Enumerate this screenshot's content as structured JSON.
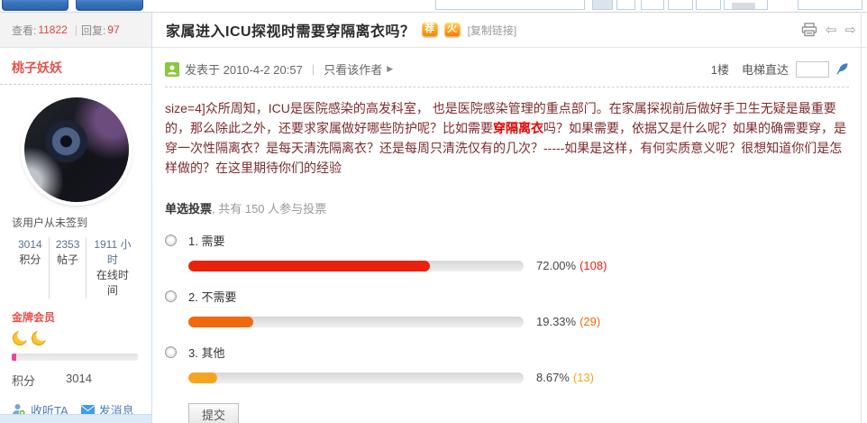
{
  "topbar": {
    "view_label": "查看:",
    "view_count": "11822",
    "reply_label": "回复:",
    "reply_count": "97"
  },
  "thread": {
    "title": "家属进入ICU探视时需要穿隔离衣吗？",
    "badges": [
      {
        "name": "recommend",
        "label": "荐"
      },
      {
        "name": "hot",
        "label": "火"
      }
    ],
    "copy_link": "[复制链接]"
  },
  "post_meta": {
    "posted_at": "发表于 2010-4-2 20:57",
    "only_author": "只看该作者",
    "floor": "1楼",
    "elevator_label": "电梯直达"
  },
  "post": {
    "text_before": "size=4]众所周知，ICU是医院感染的高发科室， 也是医院感染管理的重点部门。在家属探视前后做好手卫生无疑是最重要的，那么除此之外，还要求家属做好哪些防护呢？比如需要",
    "text_highlight": "穿隔离衣",
    "text_after": "吗？如果需要，依据又是什么呢？如果的确需要穿，是穿一次性隔离衣？是每天清洗隔离衣？还是每周只清洗仅有的几次？-----如果是这样，有何实质意义呢？很想知道你们是怎样做的？在这里期待你们的经验"
  },
  "poll": {
    "type_label": "单选投票",
    "summary": ", 共有 150 人参与投票",
    "participants": 150,
    "submit_label": "提交",
    "options": [
      {
        "label": "1. 需要",
        "pct": 72.0,
        "percent_text": "72.00%",
        "votes_text": "(108)",
        "color": "#e8220f"
      },
      {
        "label": "2. 不需要",
        "pct": 19.33,
        "percent_text": "19.33%",
        "votes_text": "(29)",
        "color": "#f2680d"
      },
      {
        "label": "3. 其他",
        "pct": 8.67,
        "percent_text": "8.67%",
        "votes_text": "(13)",
        "color": "#f5a41f"
      }
    ]
  },
  "sidebar": {
    "username": "桃子妖妖",
    "checkin_status": "该用户从未签到",
    "stats": [
      {
        "value": "3014",
        "label": "积分"
      },
      {
        "value": "2353",
        "label": "帖子"
      },
      {
        "value": "1911 小时",
        "label": "在线时间"
      }
    ],
    "rank": "金牌会员",
    "score_label": "积分",
    "score_value": "3014",
    "follow_label": "收听TA",
    "message_label": "发消息"
  }
}
